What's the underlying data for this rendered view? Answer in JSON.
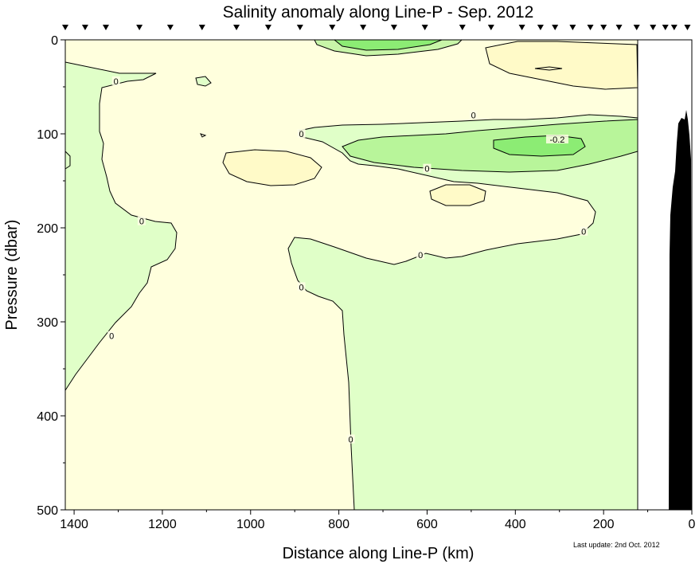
{
  "chart_data": {
    "type": "heatmap",
    "title": "Salinity anomaly along Line-P - Sep.  2012",
    "xlabel": "Distance along Line-P (km)",
    "ylabel": "Pressure (dbar)",
    "footnote": "Last update: 2nd Oct. 2012",
    "xlim": [
      1420,
      0
    ],
    "ylim": [
      0,
      500
    ],
    "x_ticks": [
      1400,
      1200,
      1000,
      800,
      600,
      400,
      200,
      0
    ],
    "y_ticks": [
      0,
      100,
      200,
      300,
      400,
      500
    ],
    "contour_levels": [
      -0.2,
      0
    ],
    "contour_labels": [
      {
        "text": "0",
        "x": 1305,
        "y": 44
      },
      {
        "text": "0",
        "x": 1247,
        "y": 193
      },
      {
        "text": "0",
        "x": 1315,
        "y": 315
      },
      {
        "text": "0",
        "x": 885,
        "y": 100
      },
      {
        "text": "0",
        "x": 885,
        "y": 263
      },
      {
        "text": "0",
        "x": 773,
        "y": 425
      },
      {
        "text": "0",
        "x": 495,
        "y": 80
      },
      {
        "text": "0",
        "x": 600,
        "y": 137
      },
      {
        "text": "0",
        "x": 615,
        "y": 229
      },
      {
        "text": "0",
        "x": 245,
        "y": 204
      },
      {
        "text": "-0.2",
        "x": 305,
        "y": 106
      }
    ],
    "station_markers_km": [
      1420,
      1375,
      1328,
      1252,
      1182,
      1110,
      1032,
      960,
      888,
      815,
      745,
      675,
      605,
      520,
      455,
      385,
      343,
      310,
      270,
      230,
      200,
      165,
      125,
      88,
      60,
      40,
      10
    ],
    "data_limit_km": 125,
    "colors": {
      "positive": "#ffffdd",
      "near_zero_negative": "#e0ffc8",
      "negative": "#b8f59a",
      "strong_negative": "#8cec74",
      "positive_patch": "#fffac8",
      "bathymetry": "#000000",
      "contour": "#000000"
    }
  }
}
